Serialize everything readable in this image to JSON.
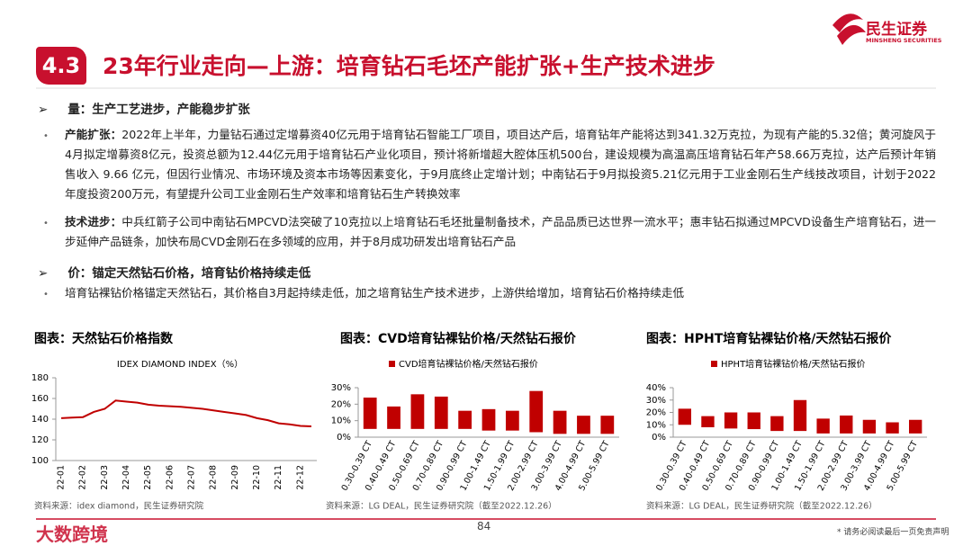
{
  "header": {
    "number": "4.3",
    "title": "23年行业走向—上游：培育钻石毛坯产能扩张+生产技术进步",
    "logo_name": "民生证券",
    "logo_sub": "MINSHENG SECURITIES"
  },
  "sections": [
    {
      "heading": "量：生产工艺进步，产能稳步扩张",
      "bullets": [
        {
          "label": "产能扩张：",
          "text": "2022年上半年，力量钻石通过定增募资40亿元用于培育钻石智能工厂项目，项目达产后，培育钻年产能将达到341.32万克拉，为现有产能的5.32倍；黄河旋风于4月拟定增募资8亿元，投资总额为12.44亿元用于培育钻石产业化项目，预计将新增超大腔体压机500台，建设规模为高温高压培育钻石年产58.66万克拉，达产后预计年销售收入 9.66 亿元，但因行业情况、市场环境及资本市场等因素变化，于9月底终止定增计划；中南钻石于9月拟投资5.21亿元用于工业金刚石生产线技改项目，计划于2022年度投资200万元，有望提升公司工业金刚石生产效率和培育钻石生产转换效率"
        },
        {
          "label": "技术进步：",
          "text": "中兵红箭子公司中南钻石MPCVD法突破了10克拉以上培育钻石毛坯批量制备技术，产品品质已达世界一流水平；惠丰钻石拟通过MPCVD设备生产培育钻石，进一步延伸产品链条，加快布局CVD金刚石在多领域的应用，并于8月成功研发出培育钻石产品"
        }
      ]
    },
    {
      "heading": "价：锚定天然钻石价格，培育钻价格持续走低",
      "bullets": [
        {
          "text": "培育钻裸钻价格锚定天然钻石，其价格自3月起持续走低，加之培育钻生产技术进步，上游供给增加，培育钻石价格持续走低"
        }
      ]
    }
  ],
  "chart_data": [
    {
      "type": "line",
      "title": "图表：天然钻石价格指数",
      "subtitle": "IDEX DIAMOND INDEX（%）",
      "source": "资料来源：idex diamond，民生证券研究院",
      "categories": [
        "22-01",
        null,
        "22-02",
        null,
        "22-03",
        null,
        "22-04",
        null,
        "22-05",
        null,
        "22-06",
        null,
        "22-07",
        null,
        "22-08",
        null,
        "22-09",
        null,
        "22-10",
        null,
        "22-11",
        null,
        "22-12",
        null
      ],
      "series": [
        {
          "color": "#c00000",
          "values": [
            141,
            141.5,
            142,
            147,
            150,
            158,
            157,
            156,
            154,
            153,
            152.5,
            152,
            151,
            150,
            148.5,
            147,
            145.5,
            144,
            141,
            139,
            136,
            135,
            133.5,
            133
          ]
        }
      ],
      "ylim": [
        100,
        180
      ],
      "yticks": [
        100,
        120,
        140,
        160,
        180
      ]
    },
    {
      "type": "range_bar",
      "title": "图表：CVD培育钻裸钻价格/天然钻石报价",
      "source": "资料来源：LG DEAL，民生证券研究院（截至2022.12.26）",
      "categories": [
        "0.30-0.39 CT",
        "0.40-0.49 CT",
        "0.50-0.69 CT",
        "0.70-0.89 CT",
        "0.90-0.99 CT",
        "1.00-1.49 CT",
        "1.50-1.99 CT",
        "2.00-2.99 CT",
        "3.00-3.99 CT",
        "4.00-4.99 CT",
        "5.00-5.99 CT"
      ],
      "series": [
        {
          "name": "CVD培育钻裸钻价格/天然钻石报价",
          "color": "#c00000",
          "low": [
            5,
            5,
            5,
            5,
            5,
            4,
            4,
            3,
            2,
            2,
            2
          ],
          "high": [
            24,
            18.6,
            26,
            24.6,
            16,
            17,
            16,
            28,
            16,
            13,
            13
          ]
        }
      ],
      "ylim": [
        0,
        30
      ],
      "yticks": [
        {
          "value": 0,
          "label": "0%"
        },
        {
          "value": 10,
          "label": "10%"
        },
        {
          "value": 20,
          "label": "20%"
        },
        {
          "value": 30,
          "label": "30%"
        }
      ]
    },
    {
      "type": "range_bar",
      "title": "图表：HPHT培育钻裸钻价格/天然钻石报价",
      "source": "资料来源：LG DEAL，民生证券研究院（截至2022.12.26）",
      "categories": [
        "0.30-0.39 CT",
        "0.40-0.49 CT",
        "0.50-0.69 CT",
        "0.70-0.89 CT",
        "0.90-0.99 CT",
        "1.00-1.49 CT",
        "1.50-1.99 CT",
        "2.00-2.99 CT",
        "3.00-3.99 CT",
        "4.00-4.99 CT",
        "5.00-5.99 CT"
      ],
      "series": [
        {
          "name": "HPHT培育钻裸钻价格/天然钻石报价",
          "color": "#c00000",
          "low": [
            10,
            8,
            7,
            6.5,
            5,
            5,
            3,
            3,
            3,
            3,
            3
          ],
          "high": [
            23,
            17,
            20,
            20,
            17,
            30,
            15,
            17.5,
            14,
            12,
            14
          ]
        }
      ],
      "ylim": [
        0,
        40
      ],
      "yticks": [
        {
          "value": 0,
          "label": "0%"
        },
        {
          "value": 10,
          "label": "10%"
        },
        {
          "value": 20,
          "label": "20%"
        },
        {
          "value": 30,
          "label": "30%"
        },
        {
          "value": 40,
          "label": "40%"
        }
      ]
    }
  ],
  "footer": {
    "page": "84",
    "disclaimer": "* 请务必阅读最后一页免责声明",
    "watermark": "大数跨境"
  }
}
